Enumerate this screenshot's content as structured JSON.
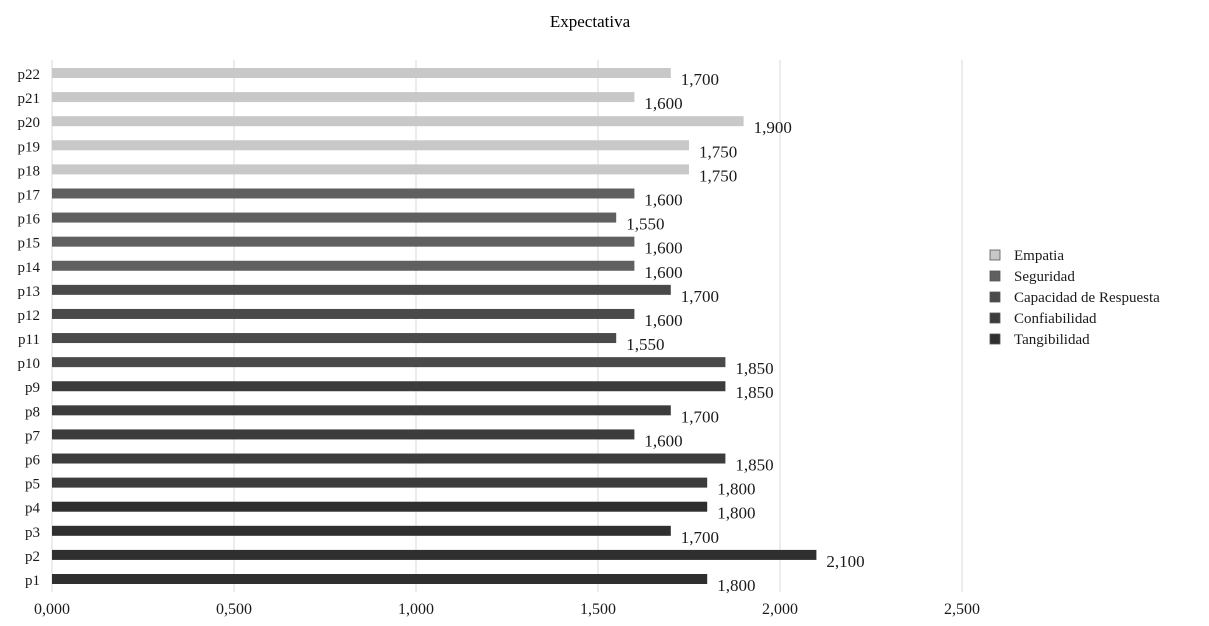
{
  "chart_data": {
    "type": "bar",
    "orientation": "horizontal",
    "title": "Expectativa",
    "xlim": [
      0,
      2.5
    ],
    "x_ticks": [
      "0,000",
      "0,500",
      "1,000",
      "1,500",
      "2,000",
      "2,500"
    ],
    "grid": true,
    "legend_position": "right",
    "series": [
      {
        "name": "Tangibilidad",
        "color": "#2f2f2f"
      },
      {
        "name": "Confiabilidad",
        "color": "#3c3c3c"
      },
      {
        "name": "Capacidad de Respuesta",
        "color": "#4a4a4a"
      },
      {
        "name": "Seguridad",
        "color": "#606060"
      },
      {
        "name": "Empatia",
        "color": "#c8c8c8"
      }
    ],
    "bars": [
      {
        "category": "p1",
        "value": 1.8,
        "label": "1,800",
        "series": "Tangibilidad"
      },
      {
        "category": "p2",
        "value": 2.1,
        "label": "2,100",
        "series": "Tangibilidad"
      },
      {
        "category": "p3",
        "value": 1.7,
        "label": "1,700",
        "series": "Tangibilidad"
      },
      {
        "category": "p4",
        "value": 1.8,
        "label": "1,800",
        "series": "Tangibilidad"
      },
      {
        "category": "p5",
        "value": 1.8,
        "label": "1,800",
        "series": "Confiabilidad"
      },
      {
        "category": "p6",
        "value": 1.85,
        "label": "1,850",
        "series": "Confiabilidad"
      },
      {
        "category": "p7",
        "value": 1.6,
        "label": "1,600",
        "series": "Confiabilidad"
      },
      {
        "category": "p8",
        "value": 1.7,
        "label": "1,700",
        "series": "Confiabilidad"
      },
      {
        "category": "p9",
        "value": 1.85,
        "label": "1,850",
        "series": "Confiabilidad"
      },
      {
        "category": "p10",
        "value": 1.85,
        "label": "1,850",
        "series": "Capacidad de Respuesta"
      },
      {
        "category": "p11",
        "value": 1.55,
        "label": "1,550",
        "series": "Capacidad de Respuesta"
      },
      {
        "category": "p12",
        "value": 1.6,
        "label": "1,600",
        "series": "Capacidad de Respuesta"
      },
      {
        "category": "p13",
        "value": 1.7,
        "label": "1,700",
        "series": "Capacidad de Respuesta"
      },
      {
        "category": "p14",
        "value": 1.6,
        "label": "1,600",
        "series": "Seguridad"
      },
      {
        "category": "p15",
        "value": 1.6,
        "label": "1,600",
        "series": "Seguridad"
      },
      {
        "category": "p16",
        "value": 1.55,
        "label": "1,550",
        "series": "Seguridad"
      },
      {
        "category": "p17",
        "value": 1.6,
        "label": "1,600",
        "series": "Seguridad"
      },
      {
        "category": "p18",
        "value": 1.75,
        "label": "1,750",
        "series": "Empatia"
      },
      {
        "category": "p19",
        "value": 1.75,
        "label": "1,750",
        "series": "Empatia"
      },
      {
        "category": "p20",
        "value": 1.9,
        "label": "1,900",
        "series": "Empatia"
      },
      {
        "category": "p21",
        "value": 1.6,
        "label": "1,600",
        "series": "Empatia"
      },
      {
        "category": "p22",
        "value": 1.7,
        "label": "1,700",
        "series": "Empatia"
      }
    ],
    "legend_order": [
      "Empatia",
      "Seguridad",
      "Capacidad de Respuesta",
      "Confiabilidad",
      "Tangibilidad"
    ]
  }
}
